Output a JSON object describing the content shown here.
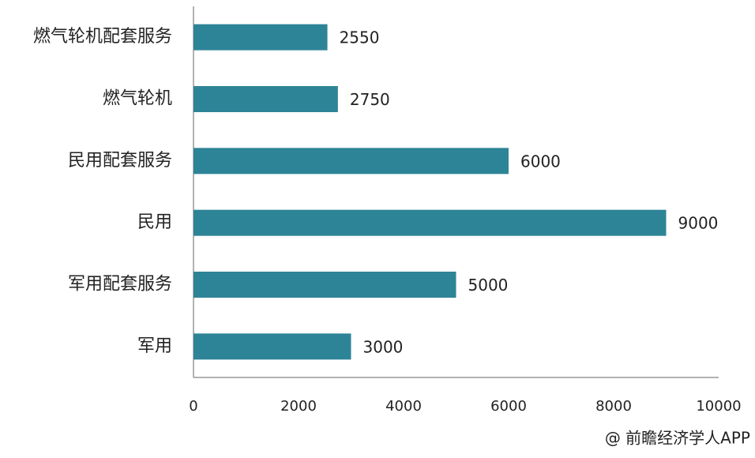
{
  "chart_data": {
    "type": "bar",
    "orientation": "horizontal",
    "categories": [
      "燃气轮机配套服务",
      "燃气轮机",
      "民用配套服务",
      "民用",
      "军用配套服务",
      "军用"
    ],
    "values": [
      2550,
      2750,
      6000,
      9000,
      5000,
      3000
    ],
    "color": "#2e8497",
    "xlim": [
      0,
      10000
    ],
    "xticks": [
      0,
      2000,
      4000,
      6000,
      8000,
      10000
    ],
    "grid": false,
    "source": "@ 前瞻经济学人APP"
  }
}
